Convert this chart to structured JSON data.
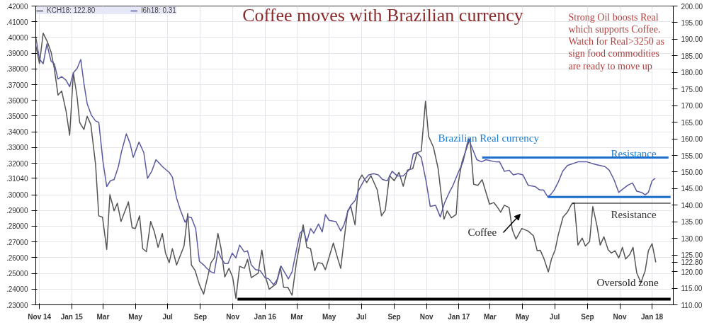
{
  "chart_data": {
    "type": "line",
    "title": "Coffee moves with Brazilian currency",
    "annotations": [
      "Strong Oil boosts Real\nwhich supports Coffee.\nWatch for Real>3250 as\nsign food commodities\nare ready to move up",
      "Brazilian Real currency",
      "Resistance",
      "Resistance",
      "Coffee",
      "Oversold zone"
    ],
    "xlim": [
      "2014-10-25",
      "2018-02-10"
    ],
    "xticks": [
      {
        "value": "2014-11-01",
        "label": "Nov 14"
      },
      {
        "value": "2015-01-01",
        "label": "Jan 15"
      },
      {
        "value": "2015-03-01",
        "label": "Mar"
      },
      {
        "value": "2015-05-01",
        "label": "May"
      },
      {
        "value": "2015-07-01",
        "label": "Jul"
      },
      {
        "value": "2015-09-01",
        "label": "Sep"
      },
      {
        "value": "2015-11-01",
        "label": "Nov"
      },
      {
        "value": "2016-01-01",
        "label": "Jan 16"
      },
      {
        "value": "2016-03-01",
        "label": "Mar"
      },
      {
        "value": "2016-05-01",
        "label": "May"
      },
      {
        "value": "2016-07-01",
        "label": "Jul"
      },
      {
        "value": "2016-09-01",
        "label": "Sep"
      },
      {
        "value": "2016-11-01",
        "label": "Nov"
      },
      {
        "value": "2017-01-01",
        "label": "Jan 17"
      },
      {
        "value": "2017-03-01",
        "label": "Mar"
      },
      {
        "value": "2017-05-01",
        "label": "May"
      },
      {
        "value": "2017-07-01",
        "label": "Jul"
      },
      {
        "value": "2017-09-01",
        "label": "Sep"
      },
      {
        "value": "2017-11-01",
        "label": "Nov"
      },
      {
        "value": "2018-01-01",
        "label": "Jan 18"
      }
    ],
    "ylim": [
      0.23,
      0.42
    ],
    "yticks": [
      {
        "value": 0.23,
        "label": ".23000"
      },
      {
        "value": 0.24,
        "label": ".24000"
      },
      {
        "value": 0.25,
        "label": ".25000"
      },
      {
        "value": 0.26,
        "label": ".26000"
      },
      {
        "value": 0.27,
        "label": ".27000"
      },
      {
        "value": 0.28,
        "label": ".28000"
      },
      {
        "value": 0.29,
        "label": ".29000"
      },
      {
        "value": 0.3,
        "label": ".30000"
      },
      {
        "value": 0.3104,
        "label": ".31040"
      },
      {
        "value": 0.32,
        "label": ".32000"
      },
      {
        "value": 0.33,
        "label": ".33000"
      },
      {
        "value": 0.34,
        "label": ".34000"
      },
      {
        "value": 0.35,
        "label": ".35000"
      },
      {
        "value": 0.36,
        "label": ".36000"
      },
      {
        "value": 0.37,
        "label": ".37000"
      },
      {
        "value": 0.38,
        "label": ".38000"
      },
      {
        "value": 0.39,
        "label": ".39000"
      },
      {
        "value": 0.4,
        "label": ".40000"
      },
      {
        "value": 0.41,
        "label": ".41000"
      },
      {
        "value": 0.42,
        "label": ".42000"
      }
    ],
    "y2lim": [
      110,
      200
    ],
    "y2ticks": [
      {
        "value": 110,
        "label": "110.00"
      },
      {
        "value": 115,
        "label": "115.00"
      },
      {
        "value": 120,
        "label": "120.00"
      },
      {
        "value": 122.8,
        "label": "122.80"
      },
      {
        "value": 125,
        "label": "125.00"
      },
      {
        "value": 130,
        "label": "130.00"
      },
      {
        "value": 135,
        "label": "135.00"
      },
      {
        "value": 140,
        "label": "140.00"
      },
      {
        "value": 145,
        "label": "145.00"
      },
      {
        "value": 150,
        "label": "150.00"
      },
      {
        "value": 155,
        "label": "155.00"
      },
      {
        "value": 160,
        "label": "160.00"
      },
      {
        "value": 165,
        "label": "165.00"
      },
      {
        "value": 170,
        "label": "170.00"
      },
      {
        "value": 175,
        "label": "175.00"
      },
      {
        "value": 180,
        "label": "180.00"
      },
      {
        "value": 185,
        "label": "185.00"
      },
      {
        "value": 190,
        "label": "190.00"
      },
      {
        "value": 195,
        "label": "195.00"
      },
      {
        "value": 200,
        "label": "200.00"
      }
    ],
    "grid": true,
    "legend": "top left",
    "marker": "none",
    "line_style": "solid",
    "series": [
      {
        "name": "KCH18: 122.80",
        "color": "#555555",
        "axis": "y2",
        "x": [
          "2014-10-25",
          "2014-11-01",
          "2014-11-08",
          "2014-11-16",
          "2014-11-23",
          "2014-11-29",
          "2014-12-06",
          "2014-12-13",
          "2014-12-21",
          "2014-12-28",
          "2015-01-04",
          "2015-01-11",
          "2015-01-16",
          "2015-01-24",
          "2015-01-30",
          "2015-02-06",
          "2015-02-15",
          "2015-02-21",
          "2015-02-28",
          "2015-03-08",
          "2015-03-14",
          "2015-03-22",
          "2015-03-28",
          "2015-04-04",
          "2015-04-18",
          "2015-04-25",
          "2015-05-01",
          "2015-05-09",
          "2015-05-15",
          "2015-05-22",
          "2015-05-30",
          "2015-06-06",
          "2015-06-13",
          "2015-06-21",
          "2015-06-27",
          "2015-07-04",
          "2015-07-10",
          "2015-07-18",
          "2015-08-01",
          "2015-08-08",
          "2015-08-15",
          "2015-08-22",
          "2015-08-30",
          "2015-09-07",
          "2015-09-21",
          "2015-09-27",
          "2015-10-04",
          "2015-10-10",
          "2015-10-17",
          "2015-10-25",
          "2015-11-01",
          "2015-11-07",
          "2015-11-14",
          "2015-11-23",
          "2015-11-29",
          "2015-12-06",
          "2015-12-19",
          "2015-12-26",
          "2016-01-03",
          "2016-01-09",
          "2016-01-22",
          "2016-01-30",
          "2016-02-05",
          "2016-02-13",
          "2016-02-21",
          "2016-02-29",
          "2016-03-06",
          "2016-03-13",
          "2016-03-20",
          "2016-03-27",
          "2016-04-04",
          "2016-04-10",
          "2016-04-18",
          "2016-04-24",
          "2016-05-09",
          "2016-05-17",
          "2016-05-23",
          "2016-05-30",
          "2016-06-05",
          "2016-06-11",
          "2016-06-19",
          "2016-06-26",
          "2016-07-02",
          "2016-07-11",
          "2016-07-19",
          "2016-07-31",
          "2016-08-08",
          "2016-08-15",
          "2016-08-23",
          "2016-09-01",
          "2016-09-10",
          "2016-09-18",
          "2016-09-26",
          "2016-10-06",
          "2016-10-14",
          "2016-10-22",
          "2016-10-30",
          "2016-11-05",
          "2016-11-14",
          "2016-11-23",
          "2016-12-04",
          "2016-12-10",
          "2016-12-18",
          "2016-12-27",
          "2016-12-31",
          "2017-01-07",
          "2017-01-16",
          "2017-01-22",
          "2017-01-29",
          "2017-02-06",
          "2017-02-14",
          "2017-02-22",
          "2017-02-28",
          "2017-03-08",
          "2017-03-14",
          "2017-03-21",
          "2017-03-28",
          "2017-04-06",
          "2017-04-12",
          "2017-04-19",
          "2017-04-30",
          "2017-05-12",
          "2017-05-22",
          "2017-05-29",
          "2017-06-04",
          "2017-06-11",
          "2017-06-19",
          "2017-06-25",
          "2017-07-02",
          "2017-07-08",
          "2017-07-17",
          "2017-07-25",
          "2017-08-02",
          "2017-08-07",
          "2017-08-14",
          "2017-08-22",
          "2017-08-28",
          "2017-09-05",
          "2017-09-11",
          "2017-09-19",
          "2017-09-25",
          "2017-10-02",
          "2017-10-10",
          "2017-10-16",
          "2017-10-23",
          "2017-10-30",
          "2017-11-06",
          "2017-11-12",
          "2017-11-20",
          "2017-11-26",
          "2017-12-03",
          "2017-12-11",
          "2017-12-19",
          "2017-12-25",
          "2018-01-01",
          "2018-01-08"
        ],
        "values": [
          188.2,
          182.7,
          191.8,
          189.2,
          186.1,
          181.2,
          173.2,
          174.4,
          168.5,
          161.1,
          179.9,
          172.7,
          164.9,
          162.8,
          166.8,
          164.3,
          152.2,
          136.8,
          136.4,
          126.7,
          143.2,
          138.3,
          140.6,
          135.1,
          141.0,
          133.2,
          133.0,
          136.8,
          126.9,
          126.0,
          135.1,
          132.0,
          127.3,
          131.5,
          125.6,
          122.7,
          126.9,
          122.0,
          127.7,
          137.5,
          122.0,
          120.3,
          116.1,
          113.2,
          122.7,
          124.1,
          131.5,
          126.9,
          118.4,
          121.0,
          118.2,
          111.9,
          121.6,
          121.0,
          123.7,
          118.2,
          119.5,
          126.5,
          117.8,
          114.7,
          116.3,
          121.4,
          115.3,
          115.3,
          112.9,
          122.5,
          127.7,
          134.1,
          127.3,
          126.9,
          120.3,
          122.7,
          122.5,
          120.6,
          128.6,
          124.1,
          121.0,
          130.5,
          138.3,
          139.6,
          134.1,
          147.4,
          149.1,
          146.8,
          148.9,
          144.6,
          136.8,
          138.5,
          148.9,
          147.4,
          149.9,
          145.7,
          150.6,
          151.0,
          155.8,
          156.3,
          171.3,
          160.7,
          157.5,
          151.0,
          135.8,
          138.3,
          136.2,
          137.2,
          146.8,
          153.1,
          157.3,
          160.1,
          146.3,
          146.0,
          147.7,
          143.5,
          140.3,
          140.8,
          139.6,
          137.9,
          140.0,
          139.3,
          132.6,
          129.8,
          133.0,
          132.2,
          130.8,
          126.3,
          126.4,
          123.8,
          119.9,
          123.8,
          126.6,
          131.2,
          136.5,
          137.9,
          140.3,
          140.7,
          128.0,
          130.1,
          127.7,
          129.1,
          139.6,
          133.7,
          128.0,
          130.5,
          126.6,
          125.6,
          126.3,
          124.1,
          127.3,
          123.8,
          125.2,
          127.3,
          119.6,
          116.7,
          120.3,
          126.3,
          128.4,
          122.8
        ]
      },
      {
        "name": "l6h18: 0.31",
        "color": "#5a5aa0",
        "x": [
          "2014-10-25",
          "2014-11-01",
          "2014-11-08",
          "2014-11-15",
          "2014-11-23",
          "2014-11-29",
          "2014-12-06",
          "2014-12-13",
          "2014-12-21",
          "2014-12-28",
          "2015-01-04",
          "2015-01-11",
          "2015-01-18",
          "2015-01-24",
          "2015-01-30",
          "2015-02-07",
          "2015-02-15",
          "2015-02-21",
          "2015-03-01",
          "2015-03-08",
          "2015-03-15",
          "2015-03-22",
          "2015-03-30",
          "2015-04-05",
          "2015-04-14",
          "2015-04-21",
          "2015-04-27",
          "2015-05-08",
          "2015-05-17",
          "2015-05-24",
          "2015-06-01",
          "2015-06-09",
          "2015-06-21",
          "2015-07-04",
          "2015-07-10",
          "2015-07-18",
          "2015-07-25",
          "2015-08-03",
          "2015-08-09",
          "2015-08-15",
          "2015-08-23",
          "2015-08-30",
          "2015-09-07",
          "2015-09-13",
          "2015-09-21",
          "2015-09-27",
          "2015-10-04",
          "2015-10-10",
          "2015-10-17",
          "2015-10-23",
          "2015-10-31",
          "2015-11-07",
          "2015-11-14",
          "2015-11-23",
          "2015-11-29",
          "2015-12-06",
          "2015-12-14",
          "2015-12-23",
          "2016-01-01",
          "2016-01-08",
          "2016-01-17",
          "2016-01-25",
          "2016-01-31",
          "2016-02-09",
          "2016-02-14",
          "2016-02-21",
          "2016-02-29",
          "2016-03-07",
          "2016-03-13",
          "2016-03-20",
          "2016-03-27",
          "2016-04-02",
          "2016-04-11",
          "2016-04-18",
          "2016-04-24",
          "2016-05-01",
          "2016-05-14",
          "2016-05-23",
          "2016-05-29",
          "2016-06-05",
          "2016-06-11",
          "2016-06-19",
          "2016-06-26",
          "2016-07-07",
          "2016-07-15",
          "2016-07-24",
          "2016-08-02",
          "2016-08-10",
          "2016-08-19",
          "2016-08-28",
          "2016-09-07",
          "2016-09-18",
          "2016-10-01",
          "2016-10-07",
          "2016-10-14",
          "2016-10-22",
          "2016-10-31",
          "2016-11-08",
          "2016-11-18",
          "2016-11-27",
          "2016-12-05",
          "2016-12-14",
          "2016-12-20",
          "2016-12-31",
          "2017-01-09",
          "2017-01-19",
          "2017-02-04",
          "2017-02-13",
          "2017-02-21",
          "2017-03-11",
          "2017-03-19",
          "2017-03-28",
          "2017-04-06",
          "2017-04-14",
          "2017-04-23",
          "2017-05-02",
          "2017-05-12",
          "2017-05-25",
          "2017-06-03",
          "2017-06-10",
          "2017-06-18",
          "2017-06-24",
          "2017-06-30",
          "2017-07-08",
          "2017-07-16",
          "2017-07-25",
          "2017-08-14",
          "2017-08-31",
          "2017-09-16",
          "2017-10-04",
          "2017-10-12",
          "2017-10-21",
          "2017-10-30",
          "2017-11-07",
          "2017-11-16",
          "2017-11-25",
          "2017-12-03",
          "2017-12-12",
          "2017-12-19",
          "2017-12-25",
          "2018-01-01",
          "2018-01-07"
        ],
        "values": [
          0.4004,
          0.3862,
          0.3833,
          0.3959,
          0.3848,
          0.3833,
          0.3736,
          0.3751,
          0.3729,
          0.3687,
          0.3776,
          0.3803,
          0.386,
          0.3706,
          0.358,
          0.3506,
          0.3469,
          0.3461,
          0.3209,
          0.3052,
          0.3089,
          0.3097,
          0.3179,
          0.3275,
          0.3387,
          0.3327,
          0.3238,
          0.3335,
          0.3268,
          0.3104,
          0.3149,
          0.3223,
          0.3179,
          0.3142,
          0.3112,
          0.2978,
          0.2904,
          0.2825,
          0.2859,
          0.2854,
          0.2785,
          0.2577,
          0.2554,
          0.2532,
          0.251,
          0.2502,
          0.2643,
          0.2598,
          0.2562,
          0.2562,
          0.2629,
          0.2598,
          0.268,
          0.2636,
          0.2643,
          0.2554,
          0.2524,
          0.2517,
          0.2473,
          0.2465,
          0.2428,
          0.2465,
          0.2547,
          0.2495,
          0.2465,
          0.251,
          0.2643,
          0.2755,
          0.2777,
          0.2703,
          0.2785,
          0.2755,
          0.2814,
          0.2763,
          0.2874,
          0.2837,
          0.2829,
          0.277,
          0.2807,
          0.2889,
          0.2933,
          0.2963,
          0.303,
          0.3097,
          0.3126,
          0.3134,
          0.3126,
          0.3097,
          0.3089,
          0.3149,
          0.3119,
          0.3119,
          0.3164,
          0.326,
          0.3268,
          0.3238,
          0.3089,
          0.2926,
          0.2933,
          0.2859,
          0.2948,
          0.3015,
          0.3052,
          0.3142,
          0.3209,
          0.3357,
          0.3223,
          0.3209,
          0.3223,
          0.3209,
          0.3209,
          0.3149,
          0.3156,
          0.3126,
          0.3134,
          0.3126,
          0.306,
          0.3052,
          0.303,
          0.303,
          0.2986,
          0.3003,
          0.303,
          0.3082,
          0.3149,
          0.3186,
          0.3209,
          0.3209,
          0.3193,
          0.3179,
          0.3156,
          0.3097,
          0.3015,
          0.3037,
          0.306,
          0.3075,
          0.3023,
          0.3015,
          0.3,
          0.3015,
          0.3089,
          0.3104
        ]
      },
      {
        "color": "#1a6fd0",
        "x": [
          "2017-02-14",
          "2018-02-01"
        ],
        "values": [
          0.3236,
          0.3236
        ]
      },
      {
        "color": "#1a6fd0",
        "x": [
          "2017-06-18",
          "2018-02-05"
        ],
        "values": [
          0.2986,
          0.2986
        ]
      },
      {
        "color": "#000000",
        "axis": "y2",
        "x": [
          "2017-08-02",
          "2018-02-05"
        ],
        "values": [
          140.6,
          140.6
        ]
      },
      {
        "color": "#000000",
        "axis": "y2",
        "x": [
          "2015-11-10",
          "2018-02-05"
        ],
        "values": [
          111.7,
          111.7
        ]
      }
    ]
  }
}
